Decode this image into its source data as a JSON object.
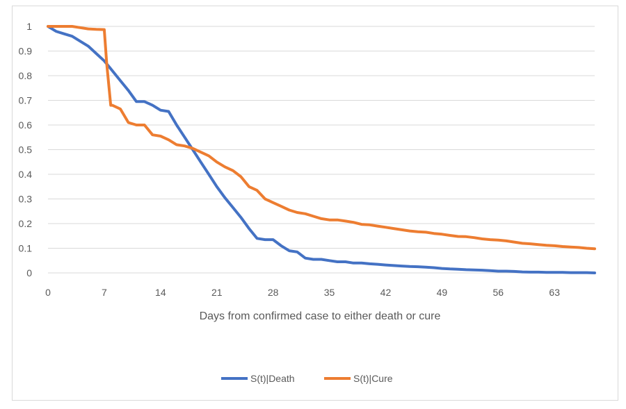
{
  "chart_data": {
    "type": "line",
    "xlabel": "Days from confirmed case to either death or cure",
    "ylabel": "",
    "xlim": [
      0,
      68
    ],
    "ylim": [
      0,
      1
    ],
    "x_ticks": [
      0,
      7,
      14,
      21,
      28,
      35,
      42,
      49,
      56,
      63
    ],
    "y_ticks": [
      0,
      0.1,
      0.2,
      0.3,
      0.4,
      0.5,
      0.6,
      0.7,
      0.8,
      0.9,
      1
    ],
    "y_tick_labels": [
      "0",
      "0.1",
      "0.2",
      "0.3",
      "0.4",
      "0.5",
      "0.6",
      "0.7",
      "0.8",
      "0.9",
      "1"
    ],
    "grid": "horizontal",
    "legend_position": "bottom",
    "series": [
      {
        "name": "S(t)|Death",
        "color": "#4472C4",
        "points": [
          [
            0,
            1.0
          ],
          [
            1,
            0.98
          ],
          [
            2,
            0.97
          ],
          [
            3,
            0.96
          ],
          [
            4,
            0.94
          ],
          [
            5,
            0.92
          ],
          [
            6,
            0.89
          ],
          [
            7,
            0.86
          ],
          [
            8,
            0.82
          ],
          [
            9,
            0.78
          ],
          [
            10,
            0.74
          ],
          [
            11,
            0.695
          ],
          [
            12,
            0.695
          ],
          [
            13,
            0.68
          ],
          [
            14,
            0.66
          ],
          [
            15,
            0.655
          ],
          [
            16,
            0.6
          ],
          [
            17,
            0.55
          ],
          [
            18,
            0.5
          ],
          [
            19,
            0.45
          ],
          [
            20,
            0.4
          ],
          [
            21,
            0.35
          ],
          [
            22,
            0.305
          ],
          [
            23,
            0.265
          ],
          [
            24,
            0.225
          ],
          [
            25,
            0.18
          ],
          [
            26,
            0.14
          ],
          [
            27,
            0.135
          ],
          [
            28,
            0.135
          ],
          [
            29,
            0.11
          ],
          [
            30,
            0.09
          ],
          [
            31,
            0.085
          ],
          [
            32,
            0.06
          ],
          [
            33,
            0.055
          ],
          [
            34,
            0.055
          ],
          [
            35,
            0.05
          ],
          [
            36,
            0.045
          ],
          [
            37,
            0.045
          ],
          [
            38,
            0.04
          ],
          [
            39,
            0.04
          ],
          [
            40,
            0.037
          ],
          [
            41,
            0.035
          ],
          [
            42,
            0.032
          ],
          [
            43,
            0.03
          ],
          [
            44,
            0.028
          ],
          [
            45,
            0.026
          ],
          [
            46,
            0.025
          ],
          [
            47,
            0.023
          ],
          [
            48,
            0.021
          ],
          [
            49,
            0.018
          ],
          [
            50,
            0.016
          ],
          [
            51,
            0.015
          ],
          [
            52,
            0.013
          ],
          [
            53,
            0.012
          ],
          [
            54,
            0.011
          ],
          [
            55,
            0.009
          ],
          [
            56,
            0.007
          ],
          [
            57,
            0.007
          ],
          [
            58,
            0.006
          ],
          [
            59,
            0.004
          ],
          [
            60,
            0.003
          ],
          [
            61,
            0.003
          ],
          [
            62,
            0.002
          ],
          [
            63,
            0.002
          ],
          [
            64,
            0.002
          ],
          [
            65,
            0.001
          ],
          [
            66,
            0.001
          ],
          [
            67,
            0.001
          ],
          [
            68,
            0.0
          ]
        ]
      },
      {
        "name": "S(t)|Cure",
        "color": "#ED7D31",
        "points": [
          [
            0,
            1.0
          ],
          [
            1,
            1.0
          ],
          [
            2,
            1.0
          ],
          [
            3,
            1.0
          ],
          [
            4,
            0.995
          ],
          [
            5,
            0.99
          ],
          [
            6,
            0.988
          ],
          [
            7,
            0.987
          ],
          [
            7.3,
            0.85
          ],
          [
            7.8,
            0.68
          ],
          [
            8,
            0.68
          ],
          [
            9,
            0.665
          ],
          [
            10,
            0.61
          ],
          [
            11,
            0.6
          ],
          [
            12,
            0.6
          ],
          [
            13,
            0.56
          ],
          [
            14,
            0.555
          ],
          [
            15,
            0.54
          ],
          [
            16,
            0.52
          ],
          [
            17,
            0.515
          ],
          [
            18,
            0.505
          ],
          [
            19,
            0.49
          ],
          [
            20,
            0.475
          ],
          [
            21,
            0.45
          ],
          [
            22,
            0.43
          ],
          [
            23,
            0.415
          ],
          [
            24,
            0.39
          ],
          [
            25,
            0.35
          ],
          [
            26,
            0.335
          ],
          [
            27,
            0.3
          ],
          [
            28,
            0.285
          ],
          [
            29,
            0.27
          ],
          [
            30,
            0.255
          ],
          [
            31,
            0.245
          ],
          [
            32,
            0.24
          ],
          [
            33,
            0.23
          ],
          [
            34,
            0.22
          ],
          [
            35,
            0.215
          ],
          [
            36,
            0.215
          ],
          [
            37,
            0.21
          ],
          [
            38,
            0.205
          ],
          [
            39,
            0.197
          ],
          [
            40,
            0.195
          ],
          [
            41,
            0.19
          ],
          [
            42,
            0.185
          ],
          [
            43,
            0.18
          ],
          [
            44,
            0.175
          ],
          [
            45,
            0.17
          ],
          [
            46,
            0.167
          ],
          [
            47,
            0.165
          ],
          [
            48,
            0.16
          ],
          [
            49,
            0.157
          ],
          [
            50,
            0.152
          ],
          [
            51,
            0.148
          ],
          [
            52,
            0.147
          ],
          [
            53,
            0.143
          ],
          [
            54,
            0.138
          ],
          [
            55,
            0.135
          ],
          [
            56,
            0.133
          ],
          [
            57,
            0.13
          ],
          [
            58,
            0.125
          ],
          [
            59,
            0.12
          ],
          [
            60,
            0.118
          ],
          [
            61,
            0.115
          ],
          [
            62,
            0.112
          ],
          [
            63,
            0.11
          ],
          [
            64,
            0.107
          ],
          [
            65,
            0.105
          ],
          [
            66,
            0.103
          ],
          [
            67,
            0.1
          ],
          [
            68,
            0.098
          ]
        ]
      }
    ]
  }
}
